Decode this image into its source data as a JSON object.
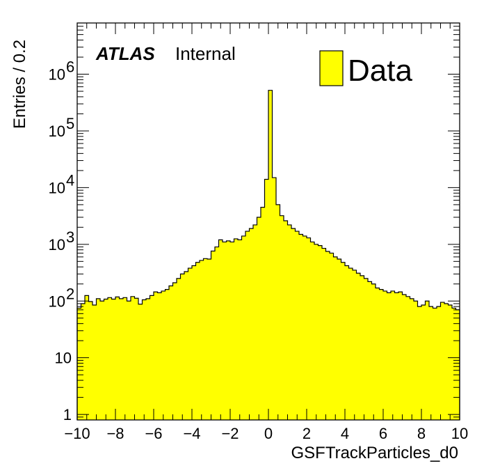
{
  "chart_data": {
    "type": "histogram",
    "xlabel": "GSFTrackParticles_d0",
    "ylabel": "Entries / 0.2",
    "xlim": [
      -10,
      10
    ],
    "ylim": [
      0.8,
      8000000
    ],
    "yscale": "log",
    "bin_width": 0.2,
    "grid": false,
    "legend_position": "top-right",
    "colors": {
      "fill": "#ffff00",
      "line": "#000000"
    },
    "label": {
      "experiment": "ATLAS",
      "status": "Internal"
    },
    "x_ticks": [
      {
        "value": -10,
        "label": "−10"
      },
      {
        "value": -8,
        "label": "−8"
      },
      {
        "value": -6,
        "label": "−6"
      },
      {
        "value": -4,
        "label": "−4"
      },
      {
        "value": -2,
        "label": "−2"
      },
      {
        "value": 0,
        "label": "0"
      },
      {
        "value": 2,
        "label": "2"
      },
      {
        "value": 4,
        "label": "4"
      },
      {
        "value": 6,
        "label": "6"
      },
      {
        "value": 8,
        "label": "8"
      },
      {
        "value": 10,
        "label": "10"
      }
    ],
    "y_ticks": [
      {
        "value": 1,
        "base": "1",
        "exp": ""
      },
      {
        "value": 10,
        "base": "10",
        "exp": ""
      },
      {
        "value": 100,
        "base": "10",
        "exp": "2"
      },
      {
        "value": 1000,
        "base": "10",
        "exp": "3"
      },
      {
        "value": 10000,
        "base": "10",
        "exp": "4"
      },
      {
        "value": 100000,
        "base": "10",
        "exp": "5"
      },
      {
        "value": 1000000,
        "base": "10",
        "exp": "6"
      }
    ],
    "series": [
      {
        "name": "Data",
        "x": [
          -9.9,
          -9.7,
          -9.5,
          -9.3,
          -9.1,
          -8.9,
          -8.7,
          -8.5,
          -8.3,
          -8.1,
          -7.9,
          -7.7,
          -7.5,
          -7.3,
          -7.1,
          -6.9,
          -6.7,
          -6.5,
          -6.3,
          -6.1,
          -5.9,
          -5.7,
          -5.5,
          -5.3,
          -5.1,
          -4.9,
          -4.7,
          -4.5,
          -4.3,
          -4.1,
          -3.9,
          -3.7,
          -3.5,
          -3.3,
          -3.1,
          -2.9,
          -2.7,
          -2.5,
          -2.3,
          -2.1,
          -1.9,
          -1.7,
          -1.5,
          -1.3,
          -1.1,
          -0.9,
          -0.7,
          -0.5,
          -0.3,
          -0.1,
          0.1,
          0.3,
          0.5,
          0.7,
          0.9,
          1.1,
          1.3,
          1.5,
          1.7,
          1.9,
          2.1,
          2.3,
          2.5,
          2.7,
          2.9,
          3.1,
          3.3,
          3.5,
          3.7,
          3.9,
          4.1,
          4.3,
          4.5,
          4.7,
          4.9,
          5.1,
          5.3,
          5.5,
          5.7,
          5.9,
          6.1,
          6.3,
          6.5,
          6.7,
          6.9,
          7.1,
          7.3,
          7.5,
          7.7,
          7.9,
          8.1,
          8.3,
          8.5,
          8.7,
          8.9,
          9.1,
          9.3,
          9.5,
          9.7,
          9.9
        ],
        "values": [
          75,
          90,
          125,
          98,
          85,
          110,
          100,
          108,
          115,
          108,
          118,
          110,
          115,
          100,
          120,
          112,
          88,
          105,
          110,
          125,
          145,
          140,
          150,
          160,
          185,
          210,
          250,
          300,
          330,
          380,
          420,
          480,
          520,
          560,
          550,
          760,
          900,
          1200,
          1100,
          1150,
          1100,
          1250,
          1200,
          1400,
          1700,
          1900,
          2200,
          3000,
          4500,
          14000,
          520000,
          15000,
          5000,
          3200,
          2600,
          2200,
          1900,
          1700,
          1500,
          1400,
          1300,
          1100,
          1000,
          950,
          850,
          750,
          700,
          600,
          550,
          480,
          420,
          380,
          350,
          310,
          280,
          250,
          220,
          200,
          170,
          160,
          150,
          140,
          150,
          140,
          145,
          130,
          120,
          110,
          100,
          80,
          85,
          100,
          80,
          75,
          80,
          95,
          90,
          85,
          75,
          70
        ]
      }
    ]
  }
}
